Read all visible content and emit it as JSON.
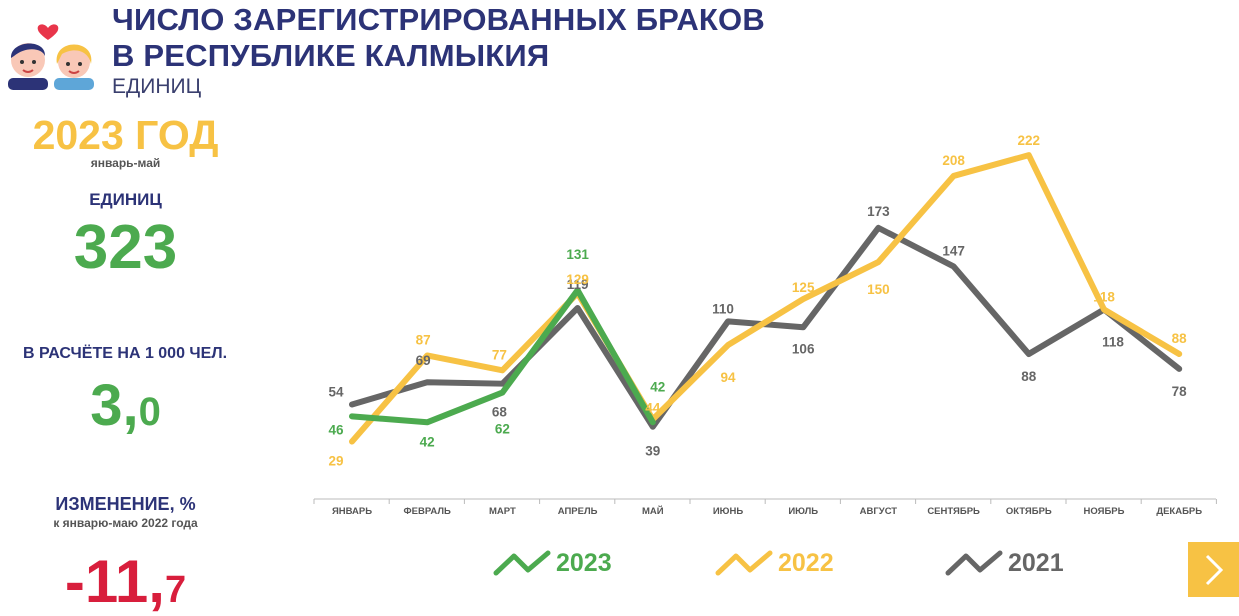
{
  "header": {
    "title_line1": "ЧИСЛО ЗАРЕГИСТРИРОВАННЫХ БРАКОВ",
    "title_line2": "В РЕСПУБЛИКЕ КАЛМЫКИЯ",
    "unit": "ЕДИНИЦ"
  },
  "summary": {
    "year": "2023 ГОД",
    "period": "январь-май",
    "units_label": "ЕДИНИЦ",
    "units_value": "323",
    "per_capita_label": "В РАСЧЁТЕ НА 1 000 ЧЕЛ.",
    "per_capita_int": "3,",
    "per_capita_dec": "0",
    "change_label": "ИЗМЕНЕНИЕ, %",
    "change_sub": "к январю-маю 2022 года",
    "change_int": "-11,",
    "change_dec": "7"
  },
  "colors": {
    "s2023": "#4caa4f",
    "s2022": "#f7c244",
    "s2021": "#666666",
    "title": "#2c3377",
    "accent_red": "#d81e3c"
  },
  "icons": {
    "couple": "couple-icon",
    "heart": "heart-icon",
    "next": "chevron-right-icon"
  },
  "chart_data": {
    "type": "line",
    "categories": [
      "ЯНВАРЬ",
      "ФЕВРАЛЬ",
      "МАРТ",
      "АПРЕЛЬ",
      "МАЙ",
      "ИЮНЬ",
      "ИЮЛЬ",
      "АВГУСТ",
      "СЕНТЯБРЬ",
      "ОКТЯБРЬ",
      "НОЯБРЬ",
      "ДЕКАБРЬ"
    ],
    "series": [
      {
        "name": "2021",
        "values": [
          54,
          69,
          68,
          119,
          39,
          110,
          106,
          173,
          147,
          88,
          118,
          78
        ]
      },
      {
        "name": "2022",
        "values": [
          29,
          87,
          77,
          129,
          44,
          94,
          125,
          150,
          208,
          222,
          118,
          88
        ]
      },
      {
        "name": "2023",
        "values": [
          46,
          42,
          62,
          131,
          42,
          null,
          null,
          null,
          null,
          null,
          null,
          null
        ]
      }
    ],
    "grid": false,
    "legend_position": "bottom",
    "legend": [
      "2023",
      "2022",
      "2021"
    ]
  }
}
